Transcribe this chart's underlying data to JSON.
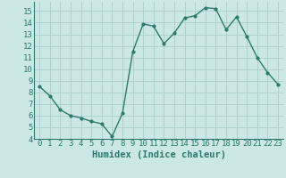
{
  "x": [
    0,
    1,
    2,
    3,
    4,
    5,
    6,
    7,
    8,
    9,
    10,
    11,
    12,
    13,
    14,
    15,
    16,
    17,
    18,
    19,
    20,
    21,
    22,
    23
  ],
  "y": [
    8.5,
    7.7,
    6.5,
    6.0,
    5.8,
    5.5,
    5.3,
    4.2,
    6.2,
    11.5,
    13.9,
    13.7,
    12.2,
    13.1,
    14.4,
    14.6,
    15.3,
    15.2,
    13.4,
    14.5,
    12.8,
    11.0,
    9.7,
    8.7
  ],
  "line_color": "#2d7a6a",
  "marker": ".",
  "marker_size": 4,
  "linewidth": 1.0,
  "xlabel": "Humidex (Indice chaleur)",
  "ylim": [
    4,
    15.8
  ],
  "yticks": [
    4,
    5,
    6,
    7,
    8,
    9,
    10,
    11,
    12,
    13,
    14,
    15
  ],
  "xticks": [
    0,
    1,
    2,
    3,
    4,
    5,
    6,
    7,
    8,
    9,
    10,
    11,
    12,
    13,
    14,
    15,
    16,
    17,
    18,
    19,
    20,
    21,
    22,
    23
  ],
  "bg_color": "#cce8e4",
  "grid_color": "#aaceca",
  "tick_label_size": 6.5,
  "xlabel_size": 7.5,
  "xlabel_color": "#2d7a6a"
}
